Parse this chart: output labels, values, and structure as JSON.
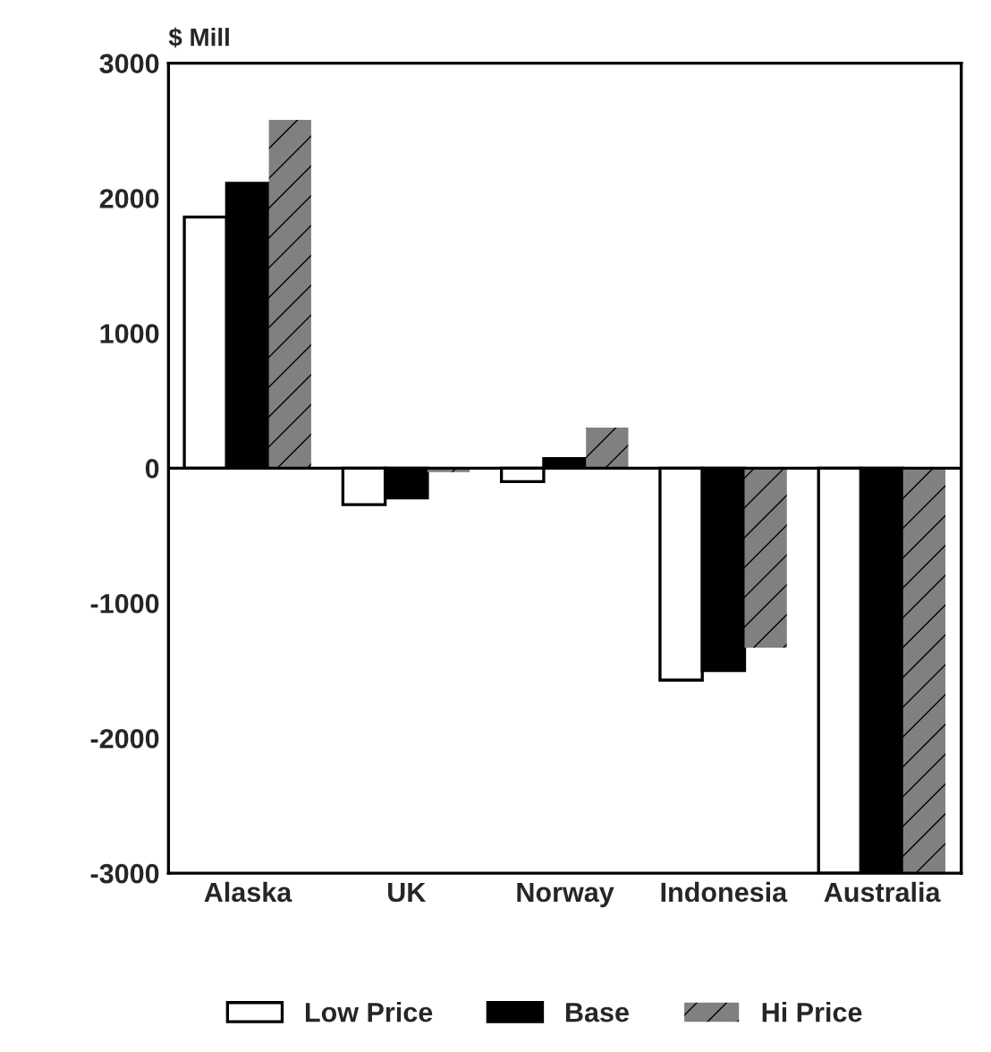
{
  "chart_data": {
    "type": "bar",
    "ylabel": "$ Mill",
    "categories": [
      "Alaska",
      "UK",
      "Norway",
      "Indonesia",
      "Australia"
    ],
    "series": [
      {
        "name": "Low Price",
        "color": "#ffffff",
        "values": [
          1860,
          -270,
          -100,
          -1570,
          -3000
        ]
      },
      {
        "name": "Base",
        "color": "#000000",
        "values": [
          2110,
          -220,
          70,
          -1500,
          -3000
        ]
      },
      {
        "name": "Hi Price",
        "color": "#808080",
        "values": [
          2580,
          -30,
          300,
          -1330,
          -3000
        ]
      }
    ],
    "ylim": [
      -3000,
      3000
    ],
    "yticks": [
      {
        "value": -3000,
        "label": "-3000"
      },
      {
        "value": -2000,
        "label": "-2000"
      },
      {
        "value": -1000,
        "label": "-1000"
      },
      0,
      1000,
      2000,
      3000
    ],
    "ref_lines": [
      {
        "axis": "y",
        "value": 0,
        "color": "#000000"
      }
    ],
    "grid": false,
    "legend": "bottom"
  }
}
